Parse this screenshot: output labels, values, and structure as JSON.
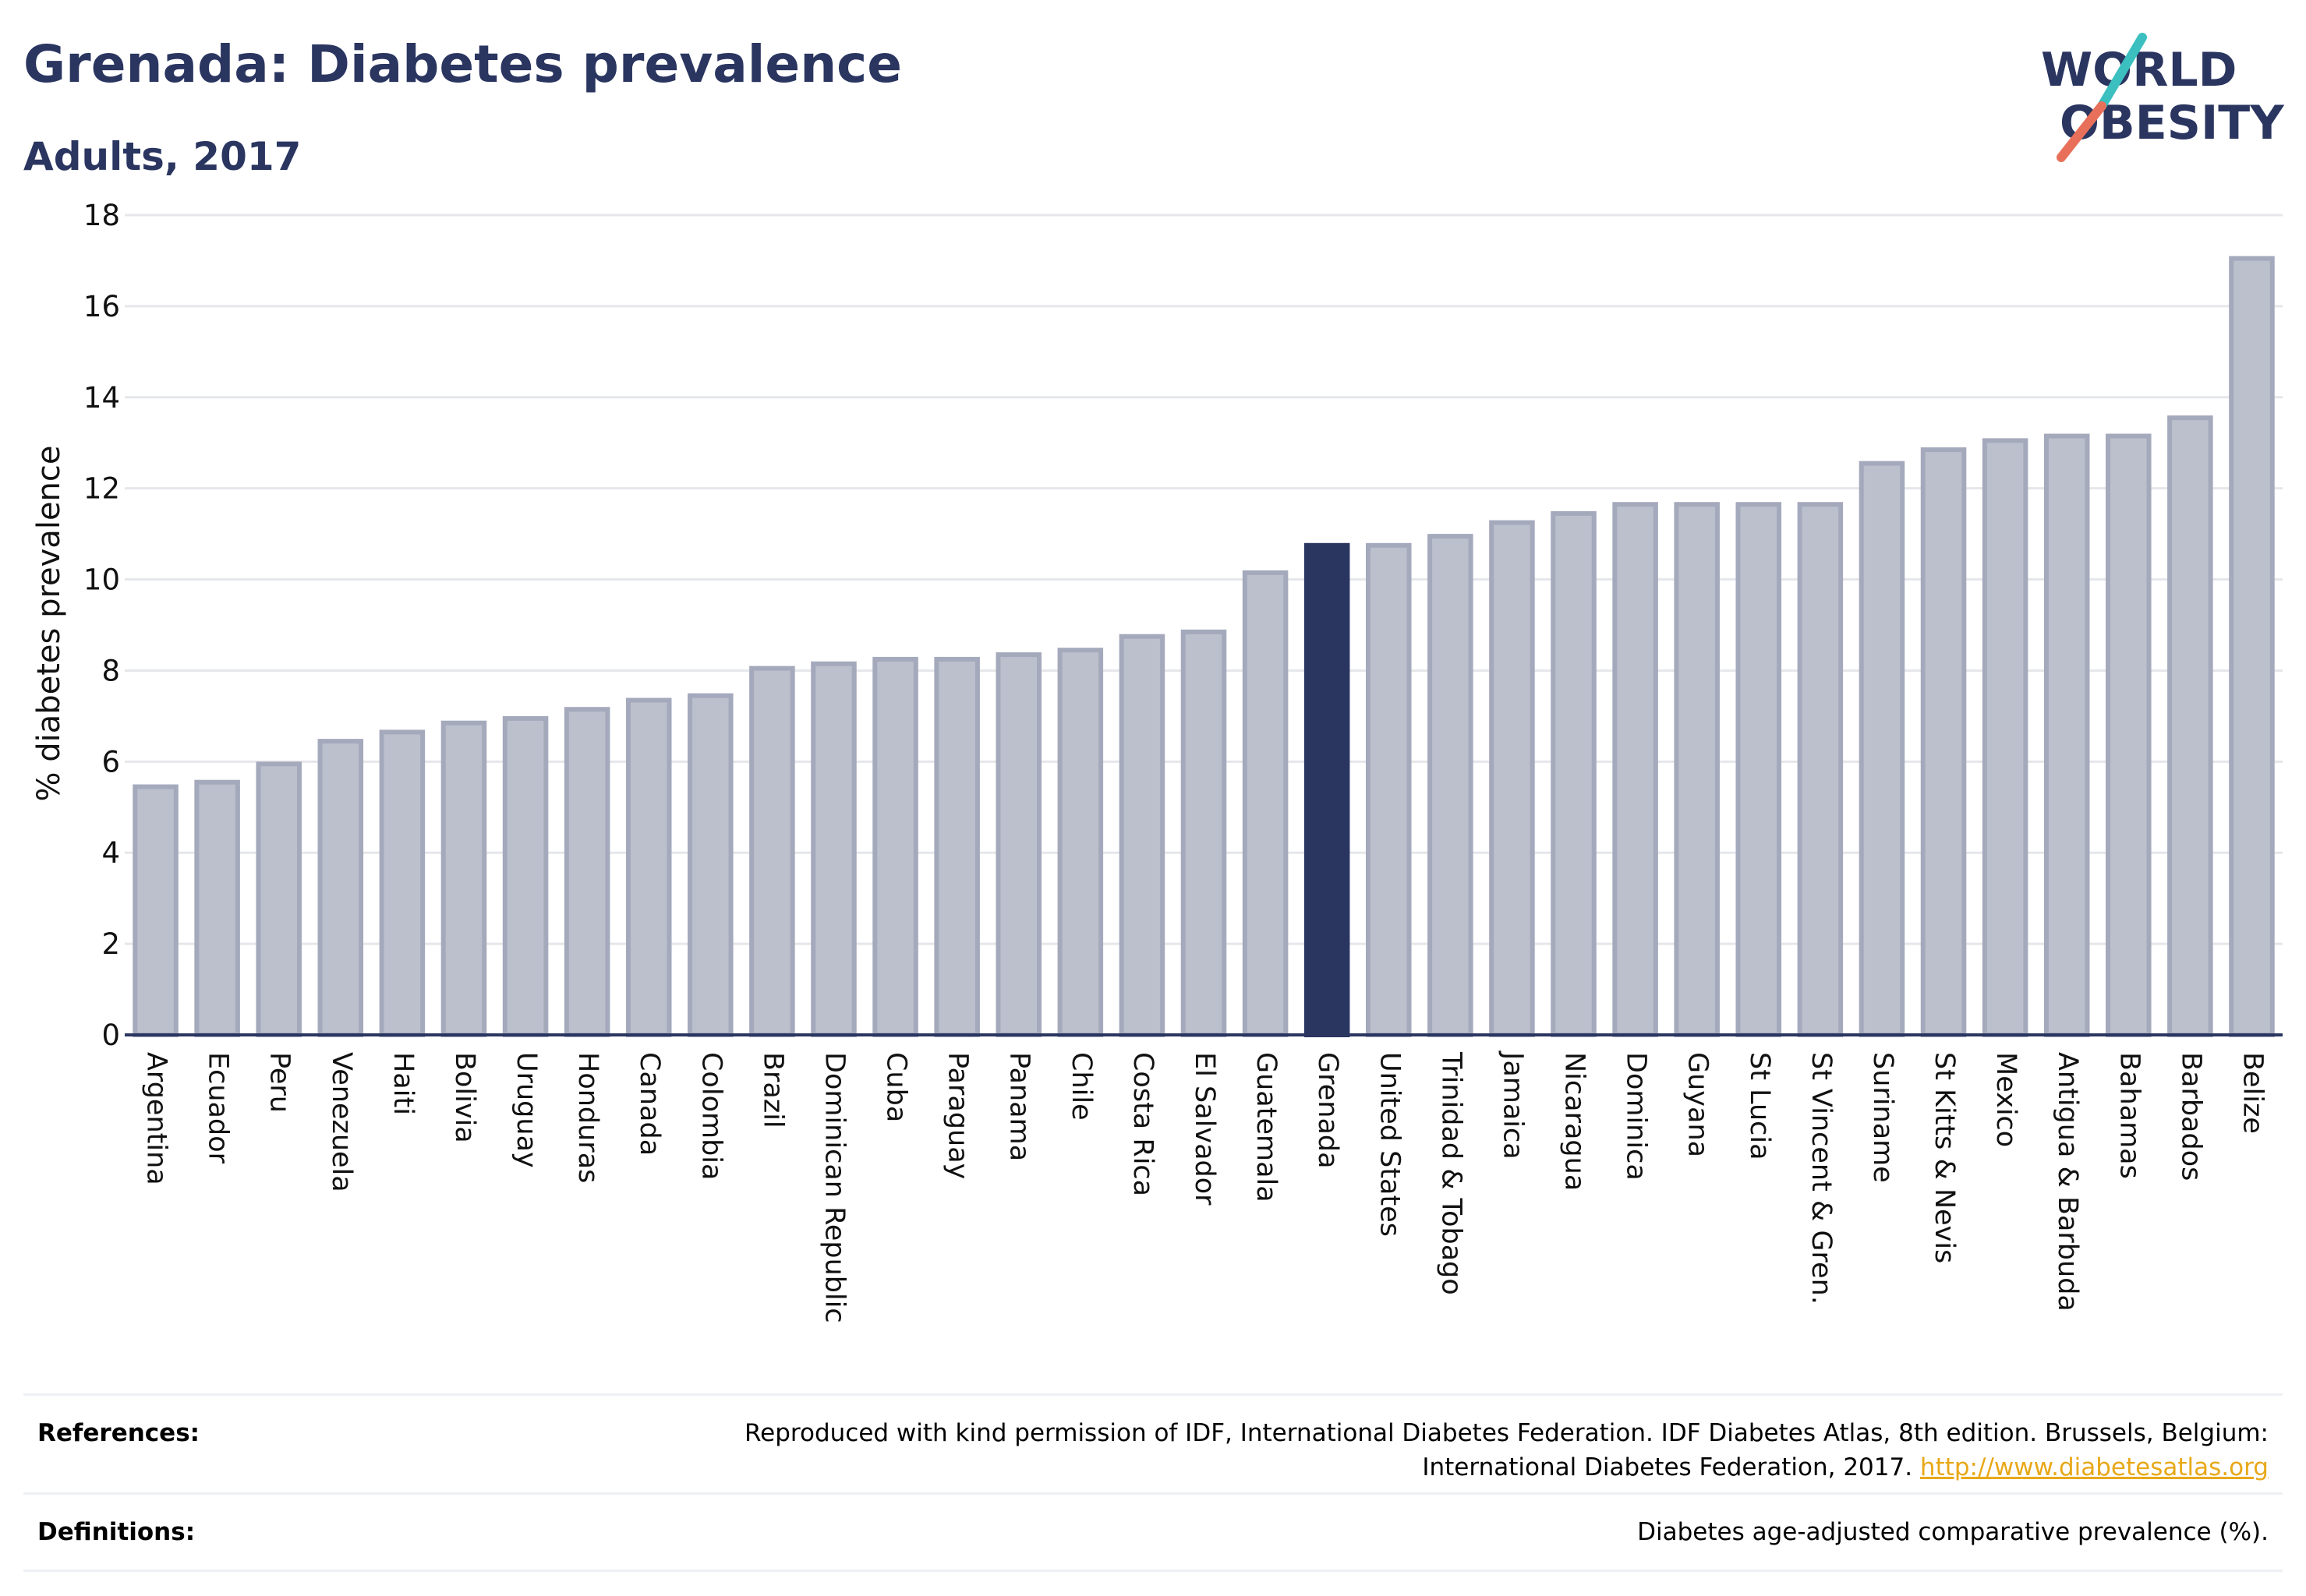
{
  "header": {
    "title": "Grenada: Diabetes prevalence",
    "subtitle": "Adults, 2017"
  },
  "logo": {
    "line1": "WORLD",
    "line2": "OBESITY"
  },
  "colors": {
    "title": "#2a3560",
    "bar": "#bcc0cd",
    "bar_border": "#a4a9bc",
    "highlight": "#2a3560",
    "axis": "#2a3560",
    "grid": "#e6e7eb",
    "logo_teal": "#3bbfbf",
    "logo_coral": "#e8705a",
    "link": "#e8a818"
  },
  "chart_data": {
    "type": "bar",
    "ylabel": "% diabetes prevalence",
    "xlabel": "",
    "ylim": [
      0,
      18
    ],
    "yticks": [
      0,
      2,
      4,
      6,
      8,
      10,
      12,
      14,
      16,
      18
    ],
    "grid": true,
    "highlight": "Grenada",
    "categories": [
      "Argentina",
      "Ecuador",
      "Peru",
      "Venezuela",
      "Haiti",
      "Bolivia",
      "Uruguay",
      "Honduras",
      "Canada",
      "Colombia",
      "Brazil",
      "Dominican Republic",
      "Cuba",
      "Paraguay",
      "Panama",
      "Chile",
      "Costa Rica",
      "El Salvador",
      "Guatemala",
      "Grenada",
      "United States",
      "Trinidad & Tobago",
      "Jamaica",
      "Nicaragua",
      "Dominica",
      "Guyana",
      "St Lucia",
      "St Vincent & Gren.",
      "Suriname",
      "St Kitts & Nevis",
      "Mexico",
      "Antigua & Barbuda",
      "Bahamas",
      "Barbados",
      "Belize"
    ],
    "values": [
      5.5,
      5.6,
      6.0,
      6.5,
      6.7,
      6.9,
      7.0,
      7.2,
      7.4,
      7.5,
      8.1,
      8.2,
      8.3,
      8.3,
      8.4,
      8.5,
      8.8,
      8.9,
      10.2,
      10.8,
      10.8,
      11.0,
      11.3,
      11.5,
      11.7,
      11.7,
      11.7,
      11.7,
      12.6,
      12.9,
      13.1,
      13.2,
      13.2,
      13.6,
      17.1
    ]
  },
  "footer": {
    "references_label": "References:",
    "references_line1": "Reproduced with kind permission of IDF, International Diabetes Federation. IDF Diabetes Atlas, 8th edition. Brussels, Belgium:",
    "references_line2": "International Diabetes Federation, 2017. ",
    "references_link": "http://www.diabetesatlas.org",
    "definitions_label": "Definitions:",
    "definitions_text": "Diabetes age-adjusted comparative prevalence (%)."
  }
}
